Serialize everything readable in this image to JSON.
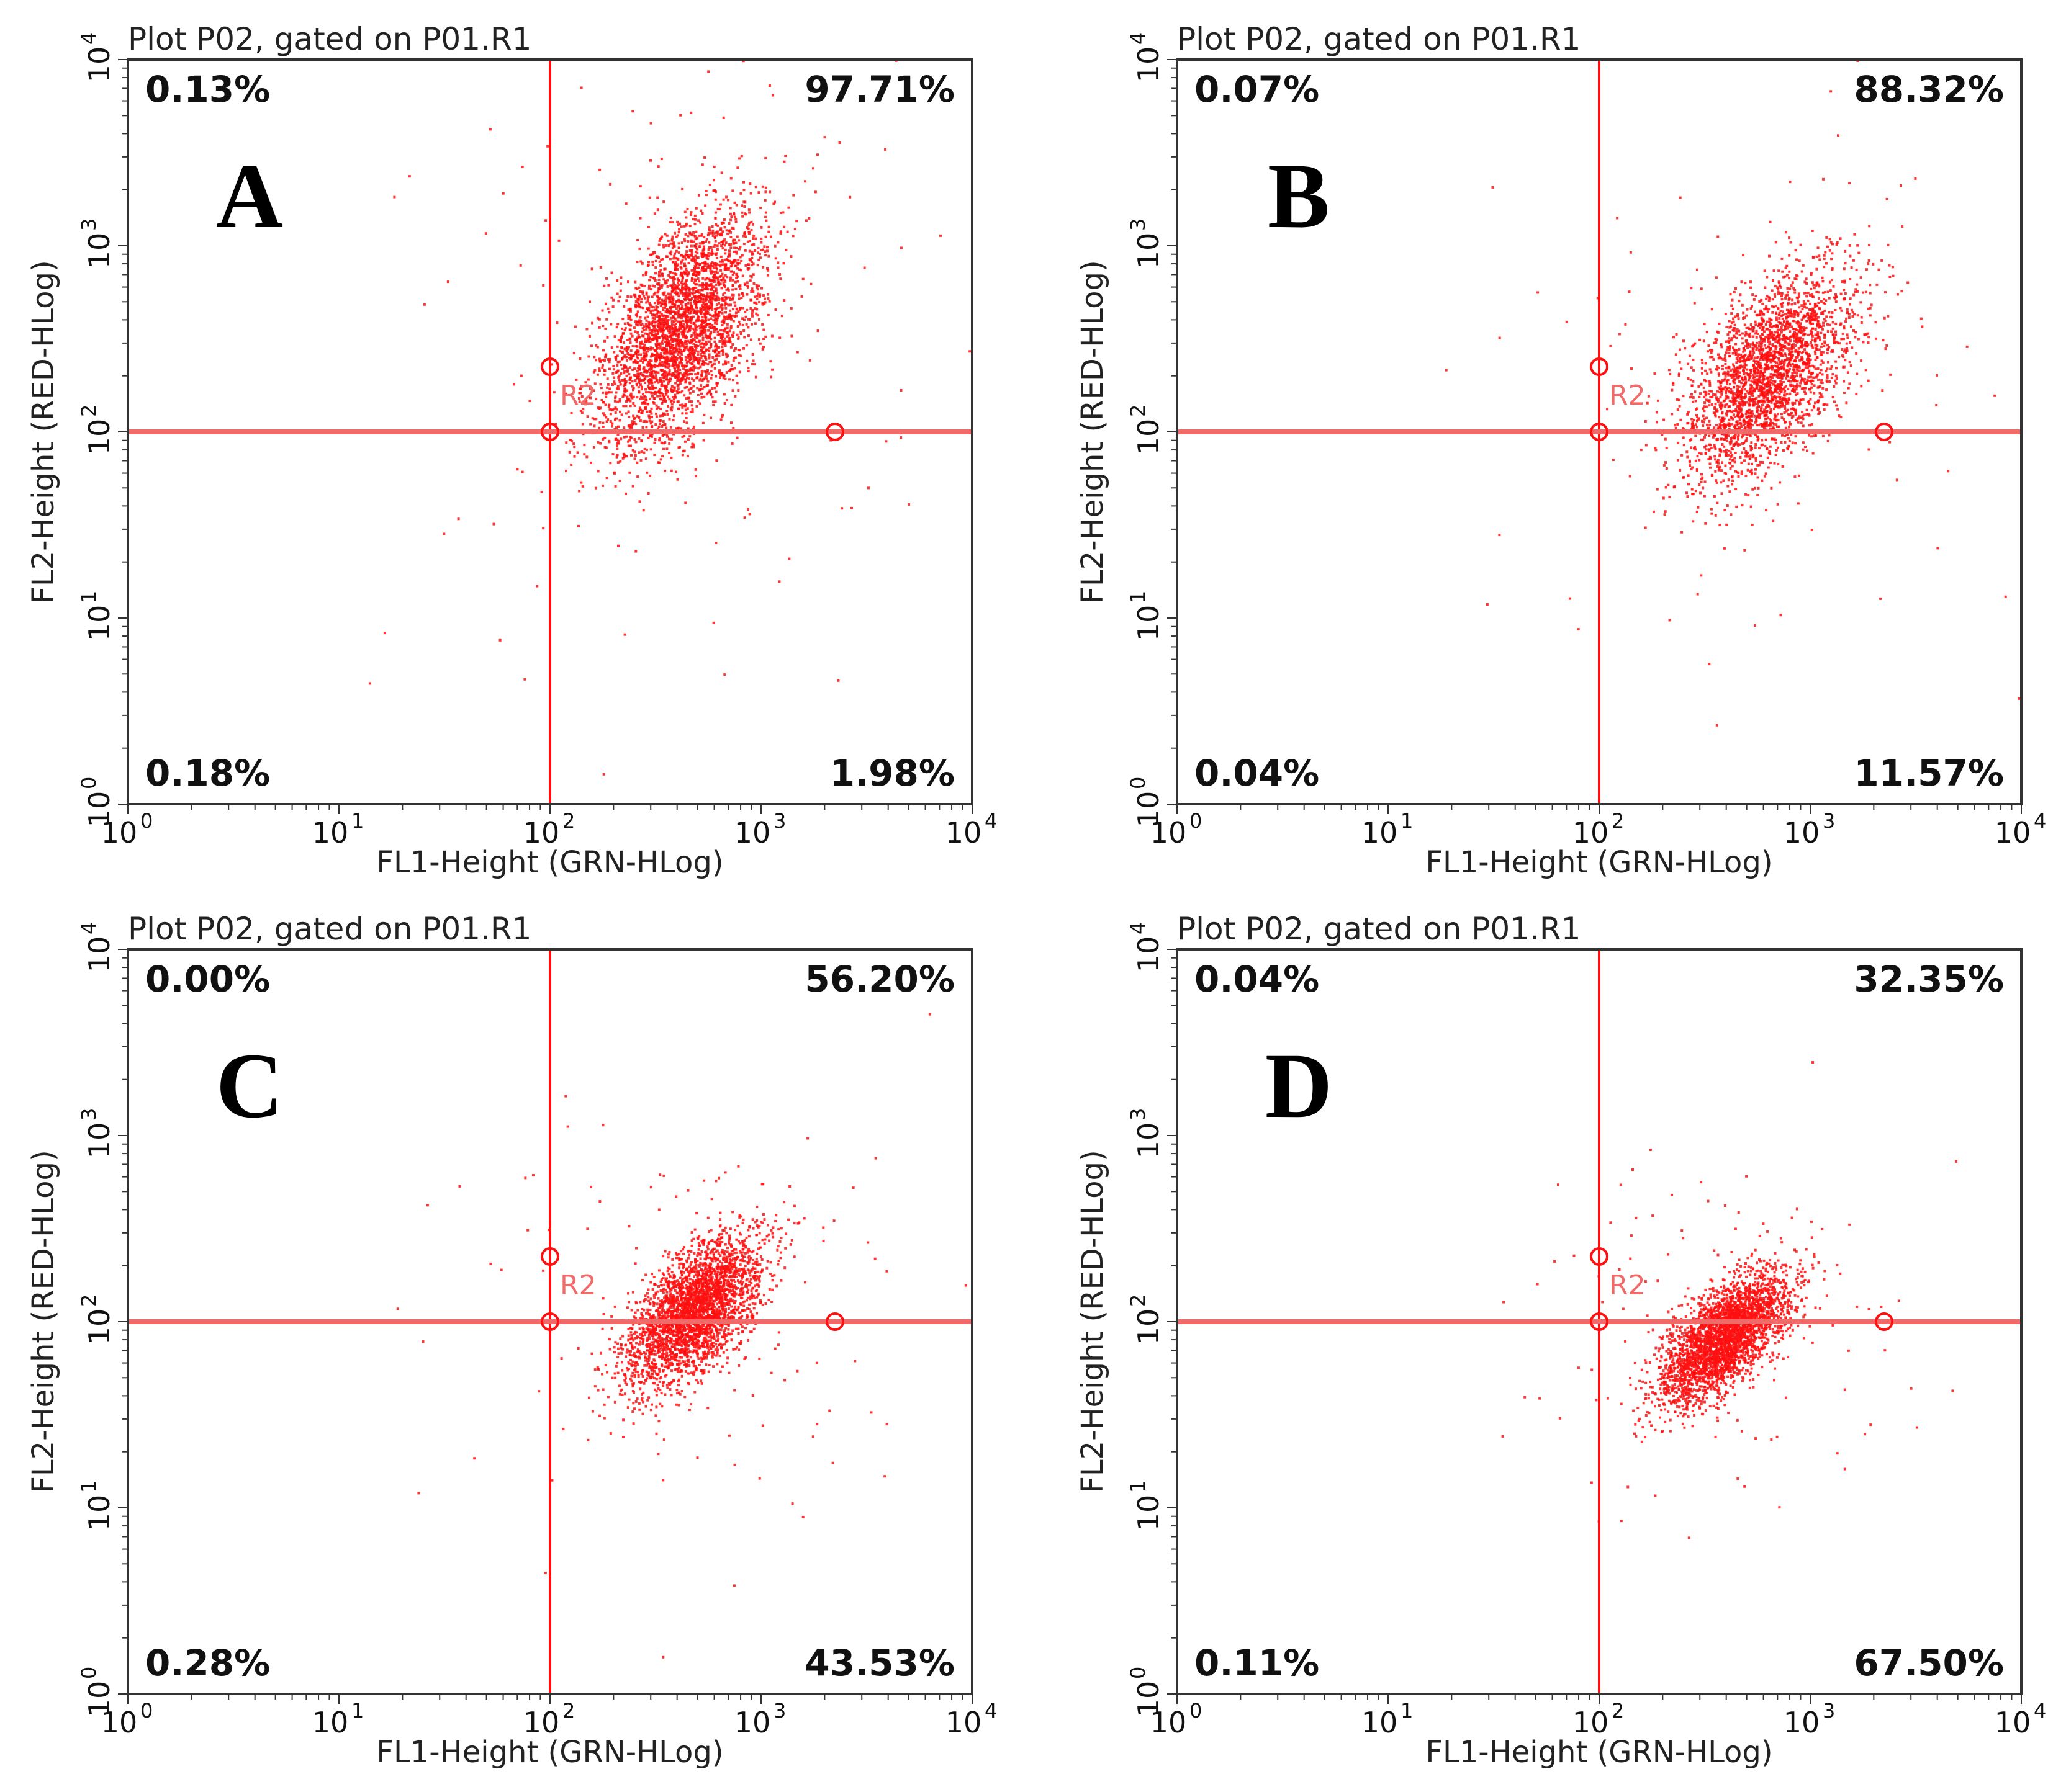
{
  "colors": {
    "dots": "#ff1010",
    "gate_line": "#f06a6a",
    "frame": "#333333",
    "background": "#ffffff"
  },
  "chart_data": [
    {
      "type": "scatter",
      "panel": "A",
      "title": "Plot P02, gated on P01.R1",
      "xlabel": "FL1-Height (GRN-HLog)",
      "ylabel": "FL2-Height (RED-HLog)",
      "x_scale": "log",
      "y_scale": "log",
      "xlim": [
        1,
        10000
      ],
      "ylim": [
        1,
        10000
      ],
      "x_ticks": [
        "10",
        "10",
        "10",
        "10",
        "10"
      ],
      "x_tick_exponents": [
        "0",
        "1",
        "2",
        "3",
        "4"
      ],
      "y_ticks": [
        "10",
        "10",
        "10",
        "10",
        "10"
      ],
      "y_tick_exponents": [
        "0",
        "1",
        "2",
        "3",
        "4"
      ],
      "gate": {
        "x": 100,
        "y": 100,
        "label": "R2"
      },
      "quadrants": {
        "upper_left": "0.13%",
        "upper_right": "97.71%",
        "lower_left": "0.18%",
        "lower_right": "1.98%"
      },
      "population": {
        "center_log_x": 2.62,
        "center_log_y": 2.55,
        "spread_x": 0.2,
        "spread_y": 0.32,
        "corr": 0.55,
        "count": 3400
      }
    },
    {
      "type": "scatter",
      "panel": "B",
      "title": "Plot P02, gated on P01.R1",
      "xlabel": "FL1-Height (GRN-HLog)",
      "ylabel": "FL2-Height (RED-HLog)",
      "x_scale": "log",
      "y_scale": "log",
      "xlim": [
        1,
        10000
      ],
      "ylim": [
        1,
        10000
      ],
      "x_ticks": [
        "10",
        "10",
        "10",
        "10",
        "10"
      ],
      "x_tick_exponents": [
        "0",
        "1",
        "2",
        "3",
        "4"
      ],
      "y_ticks": [
        "10",
        "10",
        "10",
        "10",
        "10"
      ],
      "y_tick_exponents": [
        "0",
        "1",
        "2",
        "3",
        "4"
      ],
      "gate": {
        "x": 100,
        "y": 100,
        "label": "R2"
      },
      "quadrants": {
        "upper_left": "0.07%",
        "upper_right": "88.32%",
        "lower_left": "0.04%",
        "lower_right": "11.57%"
      },
      "population": {
        "center_log_x": 2.8,
        "center_log_y": 2.3,
        "spread_x": 0.2,
        "spread_y": 0.28,
        "corr": 0.55,
        "count": 2800
      }
    },
    {
      "type": "scatter",
      "panel": "C",
      "title": "Plot P02, gated on P01.R1",
      "xlabel": "FL1-Height (GRN-HLog)",
      "ylabel": "FL2-Height (RED-HLog)",
      "x_scale": "log",
      "y_scale": "log",
      "xlim": [
        1,
        10000
      ],
      "ylim": [
        1,
        10000
      ],
      "x_ticks": [
        "10",
        "10",
        "10",
        "10",
        "10"
      ],
      "x_tick_exponents": [
        "0",
        "1",
        "2",
        "3",
        "4"
      ],
      "y_ticks": [
        "10",
        "10",
        "10",
        "10",
        "10"
      ],
      "y_tick_exponents": [
        "0",
        "1",
        "2",
        "3",
        "4"
      ],
      "gate": {
        "x": 100,
        "y": 100,
        "label": "R2"
      },
      "quadrants": {
        "upper_left": "0.00%",
        "upper_right": "56.20%",
        "lower_left": "0.28%",
        "lower_right": "43.53%"
      },
      "population": {
        "center_log_x": 2.68,
        "center_log_y": 2.05,
        "spread_x": 0.16,
        "spread_y": 0.2,
        "corr": 0.6,
        "count": 3200
      }
    },
    {
      "type": "scatter",
      "panel": "D",
      "title": "Plot P02, gated on P01.R1",
      "xlabel": "FL1-Height (GRN-HLog)",
      "ylabel": "FL2-Height (RED-HLog)",
      "x_scale": "log",
      "y_scale": "log",
      "xlim": [
        1,
        10000
      ],
      "ylim": [
        1,
        10000
      ],
      "x_ticks": [
        "10",
        "10",
        "10",
        "10",
        "10"
      ],
      "x_tick_exponents": [
        "0",
        "1",
        "2",
        "3",
        "4"
      ],
      "y_ticks": [
        "10",
        "10",
        "10",
        "10",
        "10"
      ],
      "y_tick_exponents": [
        "0",
        "1",
        "2",
        "3",
        "4"
      ],
      "gate": {
        "x": 100,
        "y": 100,
        "label": "R2"
      },
      "quadrants": {
        "upper_left": "0.04%",
        "upper_right": "32.35%",
        "lower_left": "0.11%",
        "lower_right": "67.50%"
      },
      "population": {
        "center_log_x": 2.6,
        "center_log_y": 1.92,
        "spread_x": 0.15,
        "spread_y": 0.17,
        "corr": 0.65,
        "count": 3200
      }
    }
  ]
}
